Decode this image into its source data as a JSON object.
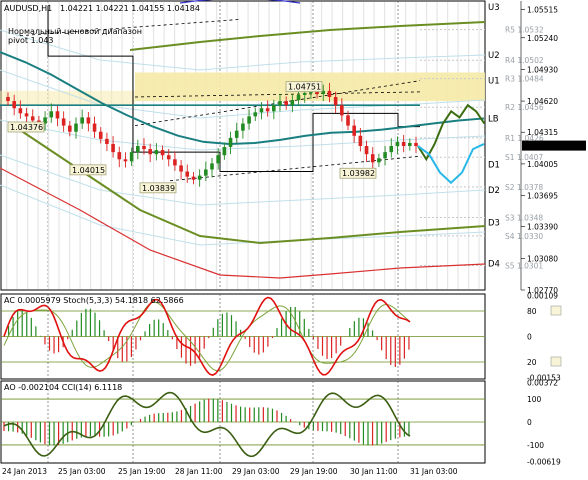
{
  "header": {
    "symbol": "AUDUSD,H1",
    "ohlc": "1.04221 1.04221 1.04155 1.04184",
    "range_label": "Нормальный ценовой диапазон",
    "pivot_label": "pivot 1.043"
  },
  "price_axis": [
    {
      "label": "1.05515",
      "y": 1.05515
    },
    {
      "label": "1.05240",
      "y": 1.0524
    },
    {
      "label": "1.04930",
      "y": 1.0493
    },
    {
      "label": "1.04620",
      "y": 1.0462
    },
    {
      "label": "1.04315",
      "y": 1.04315
    },
    {
      "label": "1.04005",
      "y": 1.04005
    },
    {
      "label": "1.03695",
      "y": 1.03695
    },
    {
      "label": "1.03390",
      "y": 1.0339
    },
    {
      "label": "1.03080",
      "y": 1.0308
    },
    {
      "label": "1.02770",
      "y": 1.0277
    }
  ],
  "current_price": "1.04184",
  "levels": [
    {
      "name": "U3",
      "y": 1.0554,
      "color": "#6b8e23"
    },
    {
      "name": "U2",
      "y": 1.0507,
      "color": "#6b8e23"
    },
    {
      "name": "U1",
      "y": 1.0482,
      "color": "#6b8e23"
    },
    {
      "name": "LB",
      "y": 1.0445,
      "color": "#008080"
    },
    {
      "name": "D1",
      "y": 1.04,
      "color": "#6b8e23"
    },
    {
      "name": "D2",
      "y": 1.0375,
      "color": "#6b8e23"
    },
    {
      "name": "D3",
      "y": 1.0343,
      "color": "#6b8e23"
    },
    {
      "name": "D4",
      "y": 1.0303,
      "color": "#c00000"
    }
  ],
  "sublevels": [
    {
      "name": "R5 1.0532",
      "y": 1.0532
    },
    {
      "name": "R4 1.0502",
      "y": 1.0502
    },
    {
      "name": "R3 1.0484",
      "y": 1.0484
    },
    {
      "name": "R2 1.0456",
      "y": 1.0456
    },
    {
      "name": "R1 1.0426",
      "y": 1.0426
    },
    {
      "name": "S1 1.0407",
      "y": 1.0407
    },
    {
      "name": "S2 1.0378",
      "y": 1.0378
    },
    {
      "name": "S3 1.0348",
      "y": 1.0348
    },
    {
      "name": "S4 1.0330",
      "y": 1.033
    },
    {
      "name": "S5 1.0301",
      "y": 1.0301
    }
  ],
  "price_annotations": [
    {
      "text": "1.04376",
      "price": 1.04376
    },
    {
      "text": "1.04015",
      "price": 1.04015
    },
    {
      "text": "1.03839",
      "price": 1.03839
    },
    {
      "text": "1.04751",
      "price": 1.04751
    },
    {
      "text": "1.03982",
      "price": 1.03982
    }
  ],
  "time_axis": [
    "24 Jan 2013",
    "25 Jan 03:00",
    "25 Jan 19:00",
    "28 Jan 11:00",
    "29 Jan 03:00",
    "29 Jan 19:00",
    "30 Jan 11:00",
    "31 Jan 03:00"
  ],
  "ac_panel": {
    "title": "AC 0.0005979  Stoch(5,3,3) 54.1818 62.5866",
    "axis": [
      "0.00109",
      "80",
      "20",
      "0",
      "-0.00153"
    ]
  },
  "ao_panel": {
    "title": "AO -0.002104  CCI(14) 6.1118",
    "axis": [
      "0.00372",
      "100",
      "0",
      "-100",
      "-0.00619"
    ]
  },
  "chart_data": {
    "type": "candlestick",
    "symbol": "AUDUSD",
    "timeframe": "H1",
    "ylim": [
      1.0277,
      1.056
    ],
    "close_series": [
      1.0462,
      1.0455,
      1.045,
      1.0447,
      1.0443,
      1.044,
      1.0446,
      1.0452,
      1.0445,
      1.0438,
      1.0432,
      1.044,
      1.0446,
      1.044,
      1.0432,
      1.0425,
      1.042,
      1.0412,
      1.0405,
      1.0403,
      1.0412,
      1.0418,
      1.0415,
      1.041,
      1.0414,
      1.0409,
      1.0405,
      1.0399,
      1.0393,
      1.0388,
      1.0385,
      1.0389,
      1.0395,
      1.0401,
      1.0409,
      1.0417,
      1.0426,
      1.0433,
      1.044,
      1.0447,
      1.0451,
      1.0455,
      1.0452,
      1.0458,
      1.0462,
      1.0458,
      1.0463,
      1.0468,
      1.047,
      1.0473,
      1.0469,
      1.0472,
      1.0466,
      1.0458,
      1.0448,
      1.0438,
      1.0428,
      1.0418,
      1.041,
      1.0402,
      1.0406,
      1.0412,
      1.0418,
      1.0422,
      1.0418,
      1.0421,
      1.0418
    ],
    "forecast_green": [
      1.0418,
      1.0405,
      1.042,
      1.044,
      1.0452,
      1.0446,
      1.0458,
      1.0452,
      1.044
    ],
    "forecast_blue": [
      1.0418,
      1.041,
      1.0392,
      1.0382,
      1.0392,
      1.0415,
      1.042
    ],
    "ma_teal": [
      1.051,
      1.05,
      1.0488,
      1.0474,
      1.046,
      1.0448,
      1.0437,
      1.0428,
      1.0422,
      1.042,
      1.0421,
      1.0424,
      1.0428,
      1.0431,
      1.0432,
      1.0434,
      1.0437,
      1.044,
      1.0443,
      1.0445
    ],
    "ac_values": "oscillator histogram",
    "ao_values": "oscillator histogram"
  }
}
